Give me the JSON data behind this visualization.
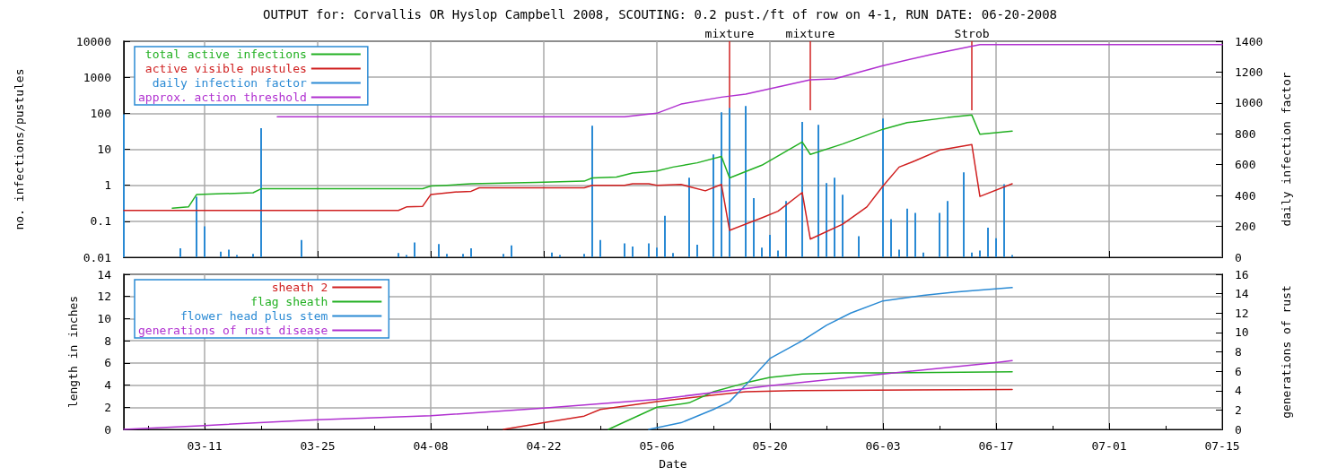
{
  "chart_data": [
    {
      "type": "line",
      "title": "OUTPUT for: Corvallis OR Hyslop Campbell 2008, SCOUTING: 0.2 pust./ft of row on 4-1, RUN DATE: 06-20-2008",
      "ylabel": "no. infections/pustules",
      "y2label": "daily infection factor",
      "log": "y",
      "grid": true,
      "legend": "top left",
      "tick_labels": "y",
      "xlim": [
        "2008-03-01",
        "2008-07-15"
      ],
      "xticks": [
        {
          "value": "2008-03-11",
          "label": null
        },
        {
          "value": "2008-03-25",
          "label": null
        },
        {
          "value": "2008-04-08",
          "label": null
        },
        {
          "value": "2008-04-22",
          "label": null
        },
        {
          "value": "2008-05-06",
          "label": null
        },
        {
          "value": "2008-05-20",
          "label": null
        },
        {
          "value": "2008-06-03",
          "label": null
        },
        {
          "value": "2008-06-17",
          "label": null
        },
        {
          "value": "2008-07-01",
          "label": null
        },
        {
          "value": "2008-07-15",
          "label": null
        }
      ],
      "ylim": [
        0.01,
        10000
      ],
      "yticks": [
        0.01,
        0.1,
        1,
        10,
        100,
        1000,
        10000
      ],
      "y2lim": [
        0,
        1400
      ],
      "y2ticks": [
        0,
        200,
        400,
        600,
        800,
        1000,
        1200,
        1400
      ],
      "series": [
        {
          "name": "total active infections",
          "color": "#22b022",
          "x": [
            "2008-03-07",
            "2008-03-09",
            "2008-03-10",
            "2008-03-17",
            "2008-03-18",
            "2008-04-07",
            "2008-04-08",
            "2008-04-10",
            "2008-04-13",
            "2008-04-21",
            "2008-04-27",
            "2008-04-28",
            "2008-05-01",
            "2008-05-03",
            "2008-05-06",
            "2008-05-08",
            "2008-05-11",
            "2008-05-14",
            "2008-05-15",
            "2008-05-19",
            "2008-05-24",
            "2008-05-25",
            "2008-05-29",
            "2008-06-03",
            "2008-06-06",
            "2008-06-11",
            "2008-06-14",
            "2008-06-15",
            "2008-06-19"
          ],
          "values": [
            0.23,
            0.25,
            0.55,
            0.62,
            0.8,
            0.8,
            0.95,
            1.0,
            1.1,
            1.2,
            1.3,
            1.6,
            1.7,
            2.2,
            2.5,
            3.2,
            4.2,
            6.3,
            1.6,
            3.6,
            16,
            7.2,
            14,
            36,
            55,
            76,
            89,
            26,
            32
          ]
        },
        {
          "name": "active visible pustules",
          "color": "#d02020",
          "x": [
            "2008-03-01",
            "2008-04-04",
            "2008-04-05",
            "2008-04-07",
            "2008-04-08",
            "2008-04-11",
            "2008-04-13",
            "2008-04-14",
            "2008-04-27",
            "2008-04-28",
            "2008-05-02",
            "2008-05-03",
            "2008-05-05",
            "2008-05-06",
            "2008-05-09",
            "2008-05-12",
            "2008-05-14",
            "2008-05-15",
            "2008-05-19",
            "2008-05-21",
            "2008-05-24",
            "2008-05-25",
            "2008-05-29",
            "2008-06-01",
            "2008-06-03",
            "2008-06-05",
            "2008-06-07",
            "2008-06-10",
            "2008-06-14",
            "2008-06-15",
            "2008-06-19"
          ],
          "values": [
            0.2,
            0.2,
            0.25,
            0.26,
            0.55,
            0.65,
            0.68,
            0.85,
            0.85,
            1.0,
            1.0,
            1.1,
            1.1,
            1.0,
            1.05,
            0.7,
            1.05,
            0.056,
            0.125,
            0.19,
            0.63,
            0.032,
            0.083,
            0.25,
            0.95,
            3.2,
            4.8,
            9.4,
            13.5,
            0.49,
            1.1
          ]
        },
        {
          "name": "daily infection factor",
          "type": "bar",
          "axis": "y2",
          "color": "#2a8ad4",
          "x": [
            "2008-03-01",
            "2008-03-08",
            "2008-03-10",
            "2008-03-11",
            "2008-03-13",
            "2008-03-14",
            "2008-03-15",
            "2008-03-17",
            "2008-03-18",
            "2008-03-23",
            "2008-04-04",
            "2008-04-05",
            "2008-04-06",
            "2008-04-09",
            "2008-04-10",
            "2008-04-12",
            "2008-04-13",
            "2008-04-17",
            "2008-04-18",
            "2008-04-23",
            "2008-04-24",
            "2008-04-27",
            "2008-04-28",
            "2008-04-29",
            "2008-05-02",
            "2008-05-03",
            "2008-05-05",
            "2008-05-06",
            "2008-05-07",
            "2008-05-08",
            "2008-05-10",
            "2008-05-11",
            "2008-05-13",
            "2008-05-14",
            "2008-05-15",
            "2008-05-17",
            "2008-05-18",
            "2008-05-19",
            "2008-05-20",
            "2008-05-21",
            "2008-05-22",
            "2008-05-24",
            "2008-05-26",
            "2008-05-27",
            "2008-05-28",
            "2008-05-29",
            "2008-05-31",
            "2008-06-03",
            "2008-06-04",
            "2008-06-05",
            "2008-06-06",
            "2008-06-07",
            "2008-06-08",
            "2008-06-10",
            "2008-06-11",
            "2008-06-13",
            "2008-06-14",
            "2008-06-15",
            "2008-06-16",
            "2008-06-17",
            "2008-06-18",
            "2008-06-19"
          ],
          "values": [
            926,
            58,
            392,
            200,
            36,
            49,
            14,
            22,
            836,
            112,
            27,
            14,
            96,
            85,
            22,
            22,
            58,
            22,
            77,
            30,
            14,
            22,
            852,
            112,
            90,
            69,
            90,
            63,
            268,
            27,
            515,
            82,
            666,
            940,
            967,
            981,
            384,
            63,
            145,
            44,
            364,
            877,
            858,
            480,
            515,
            405,
            137,
            899,
            247,
            49,
            315,
            288,
            30,
            288,
            364,
            551,
            30,
            44,
            192,
            123,
            474,
            14
          ]
        },
        {
          "name": "approx. action threshold",
          "color": "#b030d0",
          "x": [
            "2008-03-20",
            "2008-05-02",
            "2008-05-04",
            "2008-05-06",
            "2008-05-09",
            "2008-05-14",
            "2008-05-17",
            "2008-05-21",
            "2008-05-25",
            "2008-05-28",
            "2008-06-03",
            "2008-06-09",
            "2008-06-15",
            "2008-07-15"
          ],
          "values": [
            80,
            80,
            90,
            100,
            180,
            280,
            340,
            540,
            850,
            900,
            2100,
            4300,
            8100,
            8100
          ]
        }
      ],
      "ref_lines": [
        {
          "axis": "x",
          "value": "2008-05-15",
          "label": "mixture"
        },
        {
          "axis": "x",
          "value": "2008-05-25",
          "label": "mixture"
        },
        {
          "axis": "x",
          "value": "2008-06-14",
          "label": "Strob"
        }
      ]
    },
    {
      "type": "line",
      "xlabel": "Date",
      "ylabel": "length in inches",
      "y2label": "generations of rust",
      "grid": true,
      "legend": "top left",
      "xlim": [
        "2008-03-01",
        "2008-07-15"
      ],
      "xticks": [
        {
          "value": "2008-03-04",
          "label": null
        },
        {
          "value": "2008-03-11",
          "label": "03-11"
        },
        {
          "value": "2008-03-18",
          "label": null
        },
        {
          "value": "2008-03-25",
          "label": "03-25"
        },
        {
          "value": "2008-04-01",
          "label": null
        },
        {
          "value": "2008-04-08",
          "label": "04-08"
        },
        {
          "value": "2008-04-15",
          "label": null
        },
        {
          "value": "2008-04-22",
          "label": "04-22"
        },
        {
          "value": "2008-04-29",
          "label": null
        },
        {
          "value": "2008-05-06",
          "label": "05-06"
        },
        {
          "value": "2008-05-13",
          "label": null
        },
        {
          "value": "2008-05-20",
          "label": "05-20"
        },
        {
          "value": "2008-05-27",
          "label": null
        },
        {
          "value": "2008-06-03",
          "label": "06-03"
        },
        {
          "value": "2008-06-10",
          "label": null
        },
        {
          "value": "2008-06-17",
          "label": "06-17"
        },
        {
          "value": "2008-06-24",
          "label": null
        },
        {
          "value": "2008-07-01",
          "label": "07-01"
        },
        {
          "value": "2008-07-08",
          "label": null
        },
        {
          "value": "2008-07-15",
          "label": "07-15"
        }
      ],
      "ylim": [
        0,
        14
      ],
      "yticks": [
        0,
        2,
        4,
        6,
        8,
        10,
        12,
        14
      ],
      "y2lim": [
        0,
        16
      ],
      "y2ticks": [
        0,
        2,
        4,
        6,
        8,
        10,
        12,
        14,
        16
      ],
      "series": [
        {
          "name": "sheath 2",
          "color": "#d02020",
          "x": [
            "2008-04-17",
            "2008-04-22",
            "2008-04-27",
            "2008-04-29",
            "2008-05-06",
            "2008-05-13",
            "2008-05-17",
            "2008-05-23",
            "2008-06-19"
          ],
          "values": [
            0,
            0.6,
            1.2,
            1.8,
            2.5,
            3.1,
            3.4,
            3.5,
            3.6
          ]
        },
        {
          "name": "flag sheath",
          "color": "#22b022",
          "x": [
            "2008-04-30",
            "2008-05-06",
            "2008-05-10",
            "2008-05-13",
            "2008-05-17",
            "2008-05-20",
            "2008-05-24",
            "2008-05-29",
            "2008-06-03",
            "2008-06-19"
          ],
          "values": [
            0,
            2.0,
            2.4,
            3.4,
            4.2,
            4.7,
            5.0,
            5.1,
            5.1,
            5.2
          ]
        },
        {
          "name": "flower head plus stem",
          "color": "#2a8ad4",
          "x": [
            "2008-05-05",
            "2008-05-09",
            "2008-05-13",
            "2008-05-15",
            "2008-05-17",
            "2008-05-20",
            "2008-05-24",
            "2008-05-27",
            "2008-05-30",
            "2008-06-03",
            "2008-06-08",
            "2008-06-12",
            "2008-06-19"
          ],
          "values": [
            0,
            0.6,
            1.8,
            2.5,
            4.0,
            6.4,
            8.0,
            9.4,
            10.5,
            11.6,
            12.1,
            12.4,
            12.8
          ]
        },
        {
          "name": "generations of rust disease",
          "color": "#b030d0",
          "axis": "y2",
          "x": [
            "2008-03-01",
            "2008-03-11",
            "2008-03-25",
            "2008-04-08",
            "2008-04-22",
            "2008-05-06",
            "2008-05-20",
            "2008-06-03",
            "2008-06-17",
            "2008-06-19"
          ],
          "values": [
            0,
            0.4,
            1.0,
            1.4,
            2.2,
            3.1,
            4.5,
            5.7,
            6.9,
            7.1
          ]
        }
      ]
    }
  ]
}
